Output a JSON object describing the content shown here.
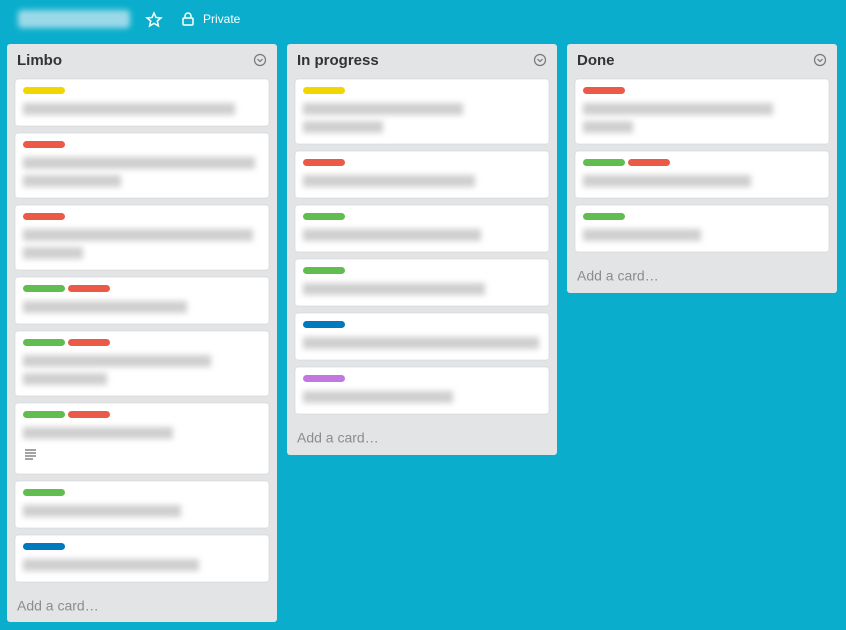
{
  "header": {
    "visibility": "Private"
  },
  "lists": [
    {
      "name": "Limbo",
      "add_card": "Add a card…",
      "cards": [
        {
          "labels": [
            "#f2d600"
          ]
        },
        {
          "labels": [
            "#eb5a46"
          ]
        },
        {
          "labels": [
            "#eb5a46"
          ]
        },
        {
          "labels": [
            "#61bd4f",
            "#eb5a46"
          ]
        },
        {
          "labels": [
            "#61bd4f",
            "#eb5a46"
          ]
        },
        {
          "labels": [
            "#61bd4f",
            "#eb5a46"
          ]
        },
        {
          "labels": [
            "#61bd4f"
          ]
        },
        {
          "labels": [
            "#0079bf"
          ]
        }
      ]
    },
    {
      "name": "In progress",
      "add_card": "Add a card…",
      "cards": [
        {
          "labels": [
            "#f2d600"
          ]
        },
        {
          "labels": [
            "#eb5a46"
          ]
        },
        {
          "labels": [
            "#61bd4f"
          ]
        },
        {
          "labels": [
            "#61bd4f"
          ]
        },
        {
          "labels": [
            "#0079bf"
          ]
        },
        {
          "labels": [
            "#c377e0"
          ]
        }
      ]
    },
    {
      "name": "Done",
      "add_card": "Add a card…",
      "cards": [
        {
          "labels": [
            "#eb5a46"
          ]
        },
        {
          "labels": [
            "#61bd4f",
            "#eb5a46"
          ]
        },
        {
          "labels": [
            "#61bd4f"
          ]
        }
      ]
    }
  ]
}
